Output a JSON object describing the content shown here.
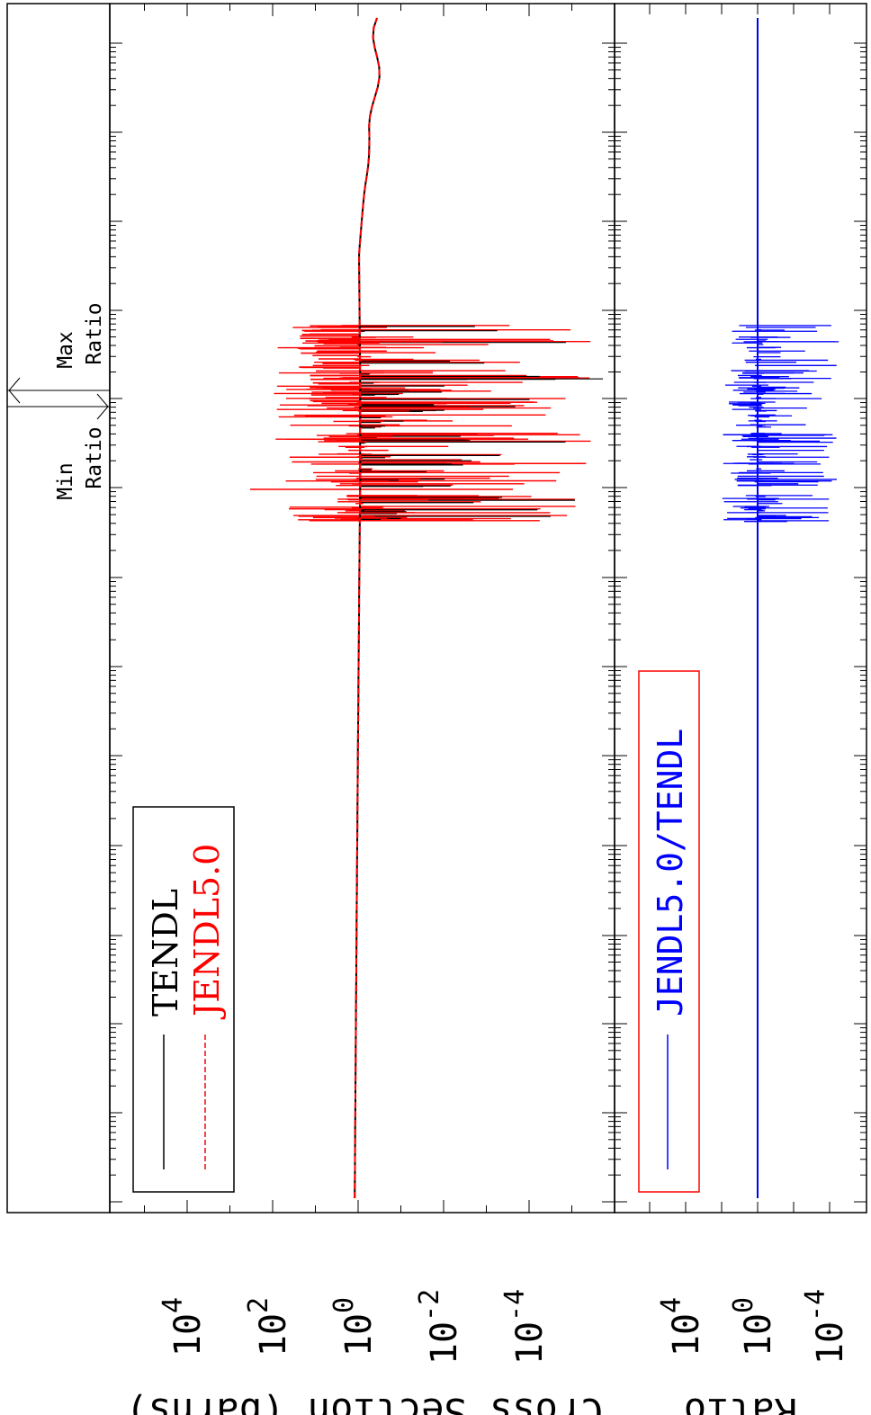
{
  "chart_data": [
    {
      "type": "line",
      "xscale": "log",
      "yscale": "log",
      "ylabel": "Cross Section (barns)",
      "ylim": [
        1e-05,
        1000000.0
      ],
      "ytick_labels": [
        {
          "base": "10",
          "exp": "4",
          "value": 10000.0
        },
        {
          "base": "10",
          "exp": "2",
          "value": 100.0
        },
        {
          "base": "10",
          "exp": "0",
          "value": 1
        },
        {
          "base": "10",
          "exp": "-2",
          "value": 0.01
        },
        {
          "base": "10",
          "exp": "-4",
          "value": 0.0001
        }
      ],
      "legend": {
        "placement": "lower-left",
        "entries": [
          {
            "label": "TENDL",
            "color": "#000000",
            "style": "solid"
          },
          {
            "label": "JENDL5.0",
            "color": "#ff0000",
            "style": "dashed"
          }
        ]
      },
      "series": [
        {
          "name": "TENDL",
          "color": "#000000",
          "values": [
            1.2,
            1.15,
            1.1,
            1.05,
            1.0,
            0.95,
            0.9,
            0.9,
            0.95,
            0.5,
            0.3
          ]
        },
        {
          "name": "JENDL5.0",
          "color": "#ff0000",
          "values": [
            1.2,
            1.15,
            1.1,
            1.05,
            1.0,
            0.95,
            0.9,
            0.9,
            0.95,
            0.5,
            0.3
          ]
        }
      ]
    },
    {
      "type": "line",
      "yscale": "log",
      "ylabel": "Ratio",
      "ylim": [
        1e-06,
        1000000.0
      ],
      "ytick_labels": [
        {
          "base": "10",
          "exp": "4",
          "value": 10000.0
        },
        {
          "base": "10",
          "exp": "0",
          "value": 1
        },
        {
          "base": "10",
          "exp": "-4",
          "value": 0.0001
        }
      ],
      "legend": {
        "placement": "lower-left",
        "box_color": "#ff0000",
        "entries": [
          {
            "label": "JENDL5.0/TENDL",
            "color": "#0000ff",
            "style": "solid"
          }
        ]
      },
      "series": [
        {
          "name": "JENDL5.0/TENDL",
          "color": "#0000ff",
          "values": [
            1,
            1,
            1,
            1,
            1,
            1,
            1,
            1,
            1,
            1,
            1
          ]
        }
      ]
    }
  ],
  "ratio_markers": {
    "min_label": [
      "Min",
      "Ratio"
    ],
    "max_label": [
      "Max",
      "Ratio"
    ]
  },
  "colors": {
    "tendl": "#000000",
    "jendl": "#ff0000",
    "ratio": "#0000ff",
    "frame": "#000000"
  }
}
